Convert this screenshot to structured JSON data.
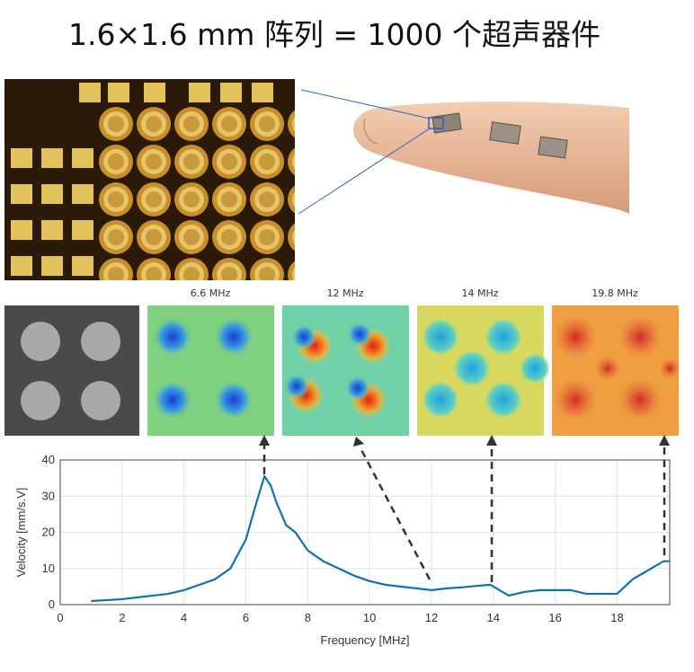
{
  "title": "1.6×1.6 mm 阵列 = 1000 个超声器件",
  "panel_labels": [
    "6.6 MHz",
    "12 MHz",
    "14 MHz",
    "19.8 MHz"
  ],
  "chart_data": {
    "type": "line",
    "x_label": "Frequency [MHz]",
    "y_label": "Velocity [mm/s.V]",
    "xlim": [
      0,
      19.7
    ],
    "ylim": [
      0,
      40
    ],
    "xticks": [
      0,
      2,
      4,
      6,
      8,
      10,
      12,
      14,
      16,
      18
    ],
    "yticks": [
      0,
      10,
      20,
      30,
      40
    ],
    "grid": true,
    "series": [
      {
        "name": "Velocity",
        "color": "#0b72b5",
        "x": [
          1,
          2,
          3,
          3.5,
          4,
          4.5,
          5,
          5.5,
          6,
          6.3,
          6.6,
          6.8,
          7,
          7.3,
          7.6,
          8,
          8.5,
          9,
          9.5,
          10,
          10.5,
          11,
          11.5,
          12,
          12.5,
          13,
          13.5,
          13.9,
          14.2,
          14.5,
          15,
          15.5,
          16,
          16.5,
          17,
          17.5,
          18,
          18.5,
          19,
          19.5,
          19.7
        ],
        "values": [
          1,
          1.5,
          2.5,
          3,
          4,
          5.5,
          7,
          10,
          18,
          27,
          35.5,
          33,
          28,
          22,
          20,
          15,
          12,
          10,
          8,
          6.5,
          5.5,
          5,
          4.5,
          4,
          4.5,
          4.8,
          5.2,
          5.5,
          4,
          2.5,
          3.5,
          4,
          4,
          4,
          3,
          3,
          3,
          7,
          9.5,
          12,
          12
        ]
      }
    ]
  }
}
